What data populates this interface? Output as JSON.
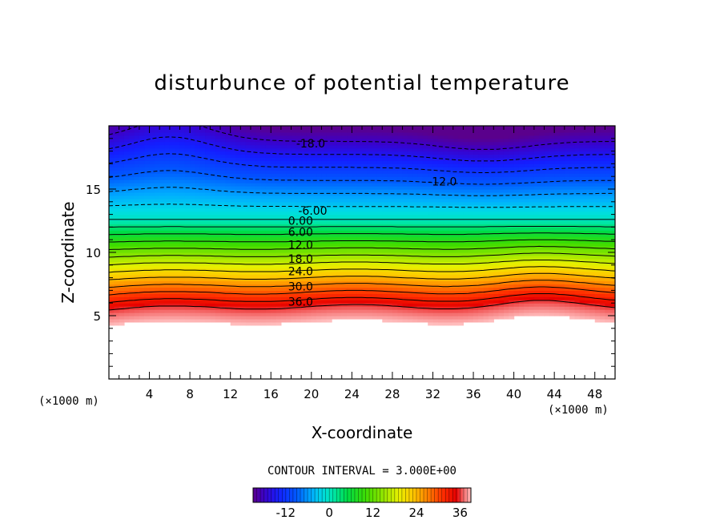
{
  "chart_data": {
    "type": "heatmap",
    "title": "disturbunce of potential temperature",
    "xlabel": "X-coordinate",
    "ylabel": "Z-coordinate",
    "x_unit": "(×1000 m)",
    "y_unit": "(×1000 m)",
    "xlim": [
      0,
      50
    ],
    "ylim": [
      0,
      20
    ],
    "x_ticks": [
      4,
      8,
      12,
      16,
      20,
      24,
      28,
      32,
      36,
      40,
      44,
      48
    ],
    "y_ticks": [
      5,
      10,
      15
    ],
    "contour_interval_label": "CONTOUR INTERVAL = 3.000E+00",
    "contour_levels": [
      -18,
      -15,
      -12,
      -9,
      -6,
      -3,
      0,
      3,
      6,
      9,
      12,
      15,
      18,
      21,
      24,
      27,
      30,
      33,
      36
    ],
    "contour_labels": [
      {
        "text": "-18.0",
        "x": 18.5,
        "z": 18.6
      },
      {
        "text": "-12.0",
        "x": 31.5,
        "z": 15.6
      },
      {
        "text": "-6.00",
        "x": 18.7,
        "z": 13.3
      },
      {
        "text": "0.00",
        "x": 17.7,
        "z": 12.5
      },
      {
        "text": "6.00",
        "x": 17.7,
        "z": 11.6
      },
      {
        "text": "12.0",
        "x": 17.7,
        "z": 10.6
      },
      {
        "text": "18.0",
        "x": 17.7,
        "z": 9.5
      },
      {
        "text": "24.0",
        "x": 17.7,
        "z": 8.5
      },
      {
        "text": "30.0",
        "x": 17.7,
        "z": 7.3
      },
      {
        "text": "36.0",
        "x": 17.7,
        "z": 6.1
      }
    ],
    "colorbar": {
      "range": [
        -21,
        39
      ],
      "tick_labels": [
        "-12",
        "0",
        "12",
        "24",
        "36"
      ],
      "tick_values": [
        -12,
        0,
        12,
        24,
        36
      ]
    },
    "field_description": "warm (red) near z=5-7 km, cold (blue/purple) near z=15-20 km, no data below about z=4.5 km"
  }
}
